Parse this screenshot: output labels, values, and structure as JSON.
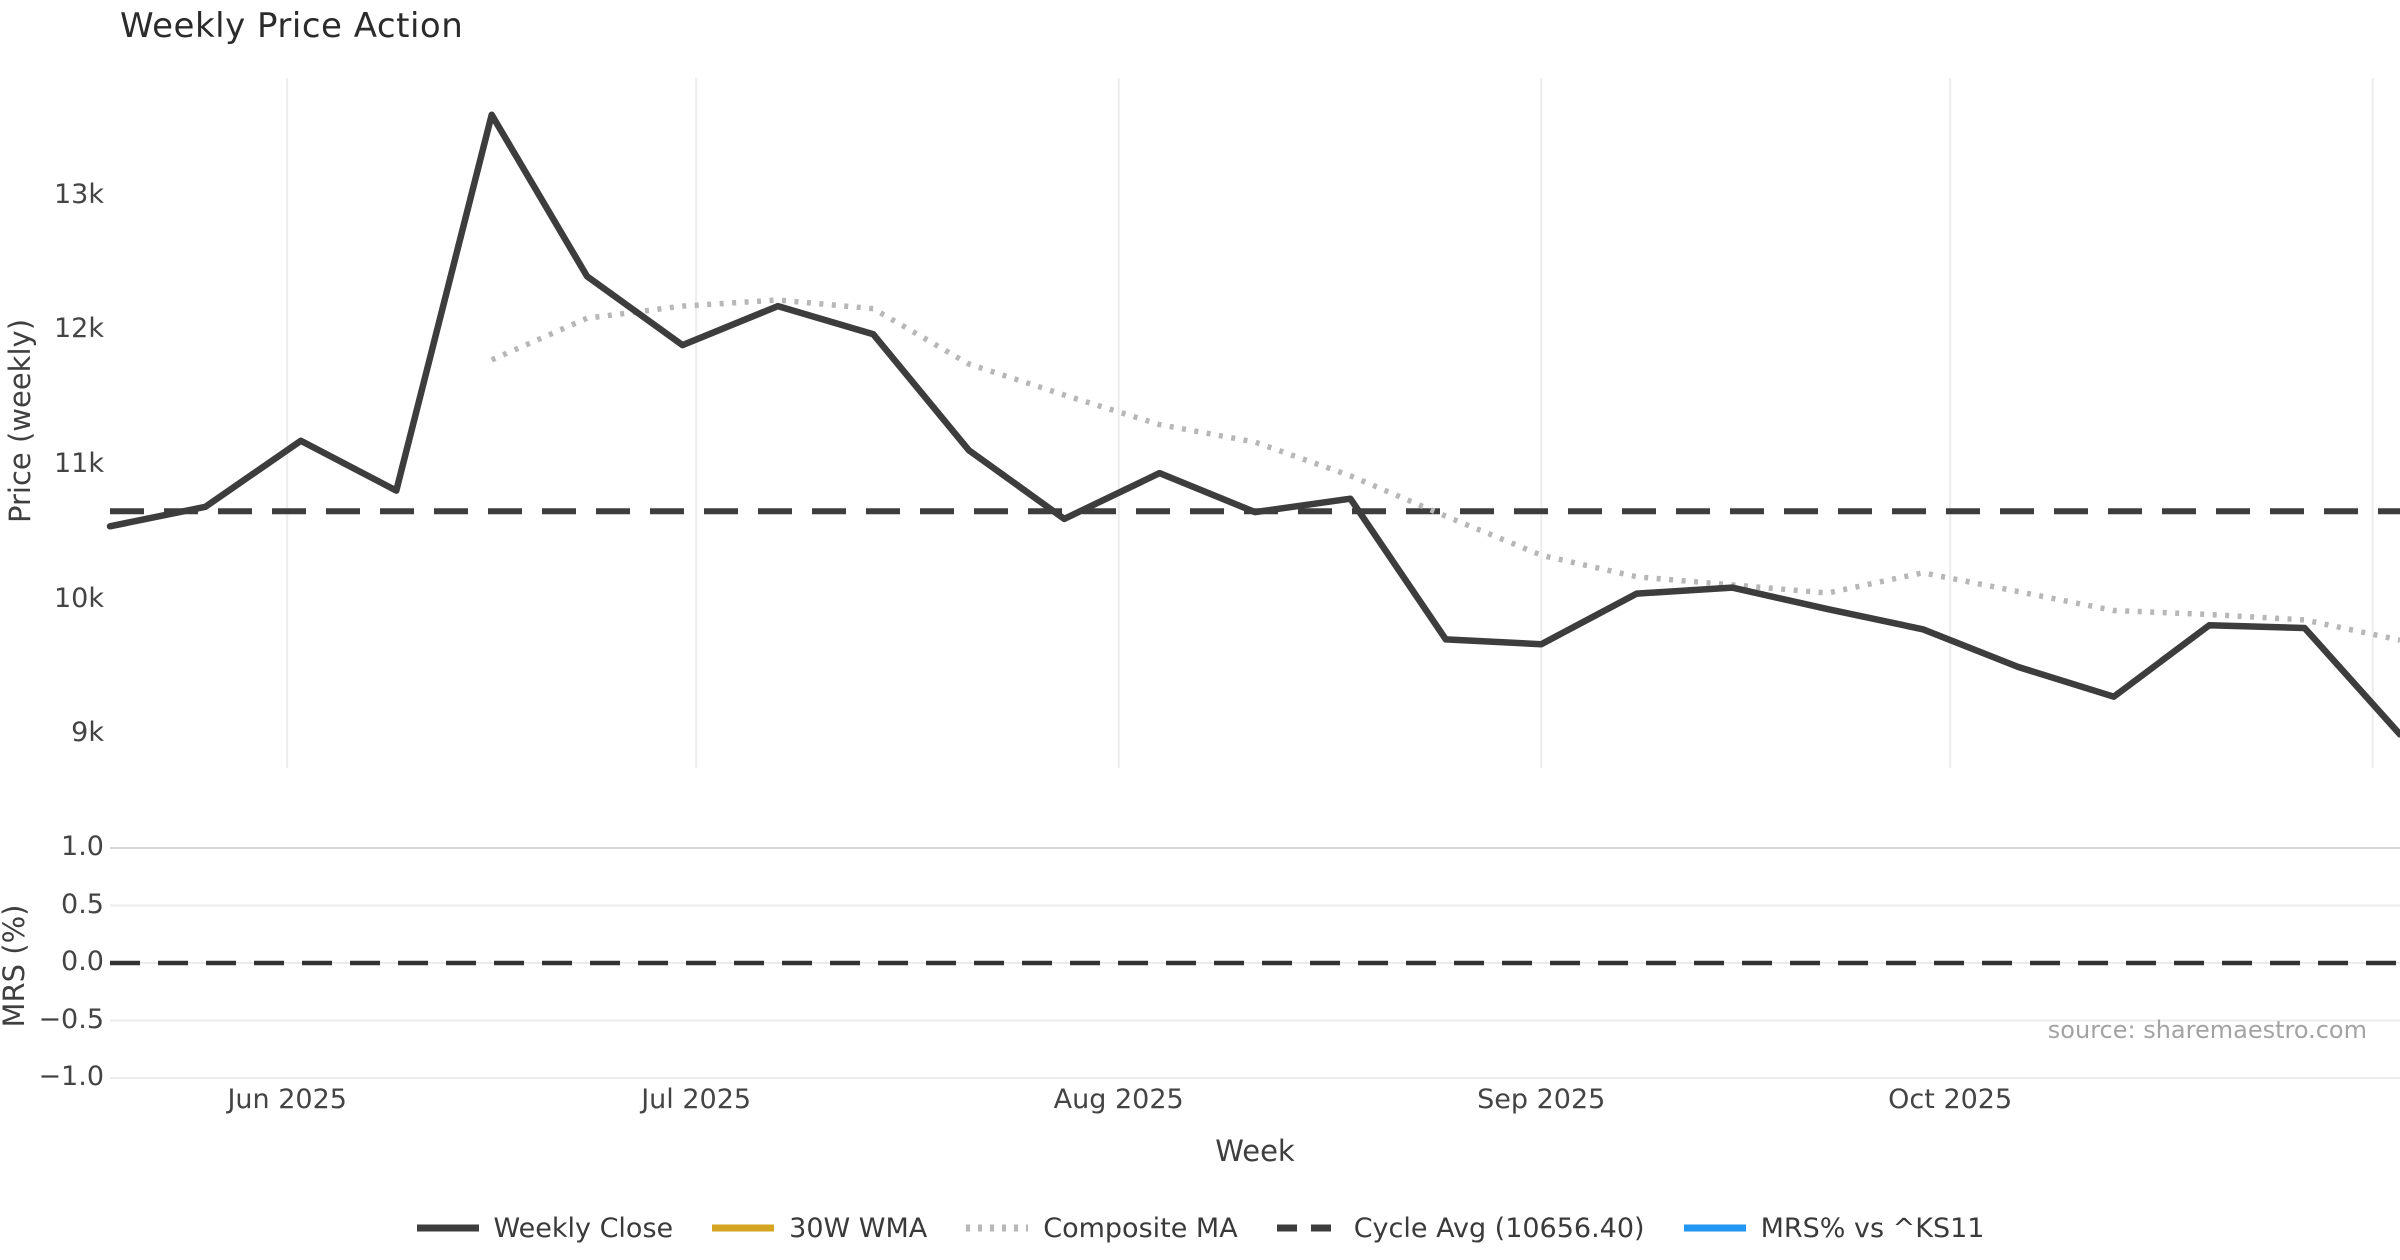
{
  "title": "Weekly Price Action",
  "source_note": "source: sharemaestro.com",
  "axes": {
    "price_axis_title": "Price (weekly)",
    "mrs_axis_title": "MRS (%)",
    "x_axis_title": "Week"
  },
  "legend": {
    "items": [
      {
        "label": "Weekly Close",
        "color": "#3d3d3d",
        "style": "solid"
      },
      {
        "label": "30W WMA",
        "color": "#d5a421",
        "style": "solid"
      },
      {
        "label": "Composite MA",
        "color": "#b7b7b7",
        "style": "dotted"
      },
      {
        "label": "Cycle Avg (10656.40)",
        "color": "#3d3d3d",
        "style": "dashed"
      },
      {
        "label": "MRS% vs ^KS11",
        "color": "#2196f3",
        "style": "solid"
      }
    ]
  },
  "chart_data": [
    {
      "type": "line",
      "panel": "price",
      "title": "Weekly Price Action",
      "ylabel": "Price (weekly)",
      "xlabel": "Week",
      "x": [
        "2025-05-19",
        "2025-05-26",
        "2025-06-02",
        "2025-06-09",
        "2025-06-16",
        "2025-06-23",
        "2025-06-30",
        "2025-07-07",
        "2025-07-14",
        "2025-07-21",
        "2025-07-28",
        "2025-08-04",
        "2025-08-11",
        "2025-08-18",
        "2025-08-25",
        "2025-09-01",
        "2025-09-08",
        "2025-09-15",
        "2025-09-22",
        "2025-09-29",
        "2025-10-06",
        "2025-10-13",
        "2025-10-20",
        "2025-10-27",
        "2025-11-03"
      ],
      "x_tick_labels": [
        "Jun 2025",
        "Jul 2025",
        "Aug 2025",
        "Sep 2025",
        "Oct 2025"
      ],
      "x_tick_days": [
        13,
        43,
        74,
        105,
        135
      ],
      "x_gridline_days": [
        13,
        43,
        74,
        105,
        135,
        166
      ],
      "ylim": [
        8750,
        13900
      ],
      "yticks": [
        {
          "label": "13k",
          "value": 13000
        },
        {
          "label": "12k",
          "value": 12000
        },
        {
          "label": "11k",
          "value": 11000
        },
        {
          "label": "10k",
          "value": 10000
        },
        {
          "label": "9k",
          "value": 9000
        }
      ],
      "grid": "vertical-months",
      "legend_position": "bottom-center",
      "series": [
        {
          "name": "Weekly Close",
          "style": "solid",
          "color": "#3d3d3d",
          "values": [
            10545,
            10690,
            11180,
            10810,
            13600,
            12400,
            11890,
            12180,
            11970,
            11110,
            10600,
            10940,
            10650,
            10750,
            9705,
            9670,
            10045,
            10090,
            9930,
            9780,
            9500,
            9280,
            9810,
            9790,
            9000
          ]
        },
        {
          "name": "30W WMA",
          "style": "solid",
          "color": "#d5a421",
          "values": []
        },
        {
          "name": "Composite MA",
          "style": "dotted",
          "color": "#b7b7b7",
          "values": [
            null,
            null,
            null,
            null,
            11780,
            12090,
            12180,
            12225,
            12160,
            11750,
            11520,
            11300,
            11170,
            10920,
            10620,
            10330,
            10170,
            10110,
            10050,
            10200,
            10060,
            9920,
            9890,
            9850,
            9700
          ]
        },
        {
          "name": "Cycle Avg (10656.40)",
          "style": "dashed",
          "color": "#3d3d3d",
          "constant": 10656.4
        }
      ]
    },
    {
      "type": "line",
      "panel": "mrs",
      "ylabel": "MRS (%)",
      "ylim": [
        -1.05,
        1.05
      ],
      "yticks": [
        {
          "label": "1.0",
          "value": 1.0
        },
        {
          "label": "0.5",
          "value": 0.5
        },
        {
          "label": "0.0",
          "value": 0.0
        },
        {
          "label": "−0.5",
          "value": -0.5
        },
        {
          "label": "−1.0",
          "value": -1.0
        }
      ],
      "grid": "horizontal",
      "zero_line": {
        "style": "dashed",
        "color": "#333333",
        "value": 0.0
      },
      "series": [
        {
          "name": "MRS% vs ^KS11",
          "style": "solid",
          "color": "#2196f3",
          "values": []
        }
      ]
    }
  ]
}
